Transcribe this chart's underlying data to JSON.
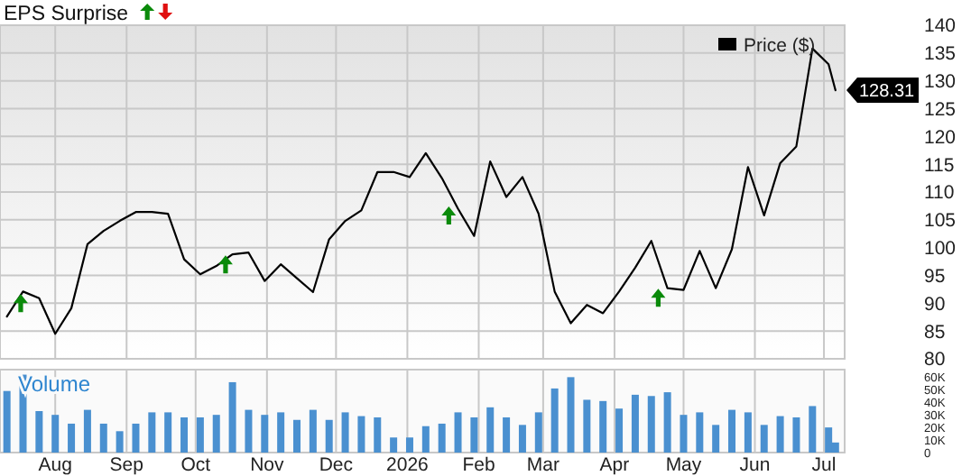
{
  "chart_data": [
    {
      "type": "line",
      "title": "EPS Surprise",
      "x": [
        "2025-07-11",
        "2025-07-18",
        "2025-07-25",
        "2025-08-01",
        "2025-08-08",
        "2025-08-15",
        "2025-08-22",
        "2025-08-29",
        "2025-09-05",
        "2025-09-12",
        "2025-09-19",
        "2025-09-26",
        "2025-10-03",
        "2025-10-10",
        "2025-10-17",
        "2025-10-24",
        "2025-10-31",
        "2025-11-07",
        "2025-11-14",
        "2025-11-21",
        "2025-11-28",
        "2025-12-05",
        "2025-12-12",
        "2025-12-19",
        "2025-12-26",
        "2026-01-02",
        "2026-01-09",
        "2026-01-16",
        "2026-01-23",
        "2026-01-30",
        "2026-02-06",
        "2026-02-13",
        "2026-02-20",
        "2026-02-27",
        "2026-03-06",
        "2026-03-13",
        "2026-03-20",
        "2026-03-27",
        "2026-04-03",
        "2026-04-10",
        "2026-04-17",
        "2026-04-24",
        "2026-05-01",
        "2026-05-08",
        "2026-05-15",
        "2026-05-22",
        "2026-05-29",
        "2026-06-05",
        "2026-06-12",
        "2026-06-19",
        "2026-06-26",
        "2026-07-03",
        "2026-07-06"
      ],
      "series": [
        {
          "name": "Price ($)",
          "color": "#000000",
          "values": [
            87.6,
            92.1,
            90.9,
            84.5,
            89.1,
            100.6,
            103,
            104.8,
            106.4,
            106.4,
            106.1,
            97.9,
            95.2,
            96.7,
            98.8,
            99.1,
            94,
            97,
            94.5,
            92,
            101.5,
            104.8,
            106.7,
            113.6,
            113.6,
            112.7,
            117,
            112.5,
            107,
            102.1,
            115.5,
            109.1,
            112.7,
            106.1,
            92.1,
            86.4,
            89.7,
            88.2,
            92.1,
            96.4,
            101.2,
            92.7,
            92.4,
            99.4,
            92.7,
            99.7,
            114.5,
            105.8,
            115.2,
            118.2,
            135.8,
            133,
            128.31
          ],
          "value_labels": [
            null,
            null,
            null,
            null,
            null,
            null,
            null,
            null,
            null,
            null,
            null,
            null,
            null,
            null,
            null,
            null,
            null,
            null,
            null,
            null,
            null,
            null,
            null,
            null,
            null,
            null,
            null,
            null,
            null,
            null,
            null,
            null,
            null,
            null,
            null,
            null,
            null,
            null,
            null,
            null,
            null,
            null,
            null,
            null,
            null,
            null,
            null,
            null,
            null,
            null,
            null,
            null,
            "128.31"
          ]
        },
        {
          "type": "scatter",
          "color": "#0a8a0a",
          "marker": "triangle",
          "x": [
            "2025-07-17",
            "2025-10-14",
            "2026-01-19",
            "2026-04-20"
          ],
          "values": [
            90,
            97,
            105.8,
            91
          ]
        }
      ],
      "xlim": [
        "2025-07-08",
        "2026-07-10"
      ],
      "xticks": [
        {
          "value": "2025-08-01",
          "label": null
        },
        {
          "value": "2025-09-01",
          "label": null
        },
        {
          "value": "2025-10-01",
          "label": null
        },
        {
          "value": "2025-11-01",
          "label": null
        },
        {
          "value": "2025-12-01",
          "label": null
        },
        {
          "value": "2026-01-01",
          "label": null
        },
        {
          "value": "2026-02-01",
          "label": null
        },
        {
          "value": "2026-03-01",
          "label": null
        },
        {
          "value": "2026-04-01",
          "label": null
        },
        {
          "value": "2026-05-01",
          "label": null
        },
        {
          "value": "2026-06-01",
          "label": null
        },
        {
          "value": "2026-07-01",
          "label": null
        }
      ],
      "ylim": [
        80,
        140
      ],
      "yticks": [
        80,
        85,
        90,
        95,
        100,
        105,
        110,
        115,
        120,
        125,
        130,
        135,
        140
      ],
      "grid": true,
      "legend": "top right",
      "tick_labels": "y"
    },
    {
      "type": "bar",
      "title": "Volume",
      "color": "#4a90d0",
      "x": [
        "2025-07-11",
        "2025-07-18",
        "2025-07-25",
        "2025-08-01",
        "2025-08-08",
        "2025-08-15",
        "2025-08-22",
        "2025-08-29",
        "2025-09-05",
        "2025-09-12",
        "2025-09-19",
        "2025-09-26",
        "2025-10-03",
        "2025-10-10",
        "2025-10-17",
        "2025-10-24",
        "2025-10-31",
        "2025-11-07",
        "2025-11-14",
        "2025-11-21",
        "2025-11-28",
        "2025-12-05",
        "2025-12-12",
        "2025-12-19",
        "2025-12-26",
        "2026-01-02",
        "2026-01-09",
        "2026-01-16",
        "2026-01-23",
        "2026-01-30",
        "2026-02-06",
        "2026-02-13",
        "2026-02-20",
        "2026-02-27",
        "2026-03-06",
        "2026-03-13",
        "2026-03-20",
        "2026-03-27",
        "2026-04-03",
        "2026-04-10",
        "2026-04-17",
        "2026-04-24",
        "2026-05-01",
        "2026-05-08",
        "2026-05-15",
        "2026-05-22",
        "2026-05-29",
        "2026-06-05",
        "2026-06-12",
        "2026-06-19",
        "2026-06-26",
        "2026-07-03",
        "2026-07-06"
      ],
      "values": [
        49,
        62,
        33,
        30,
        23,
        34,
        23,
        17,
        23,
        32,
        32,
        28,
        28,
        30,
        56,
        34,
        30,
        32,
        26,
        34,
        26,
        32,
        29,
        28,
        12,
        12,
        21,
        23,
        32,
        28,
        36,
        28,
        22,
        32,
        51,
        60,
        42,
        41,
        35,
        46,
        45,
        48,
        30,
        32,
        22,
        34,
        32,
        22,
        29,
        28,
        37,
        20,
        8
      ],
      "xlim": [
        "2025-07-08",
        "2026-07-10"
      ],
      "xticks": [
        {
          "value": "2025-08-01",
          "label": "Aug"
        },
        {
          "value": "2025-09-01",
          "label": "Sep"
        },
        {
          "value": "2025-10-01",
          "label": "Oct"
        },
        {
          "value": "2025-11-01",
          "label": "Nov"
        },
        {
          "value": "2025-12-01",
          "label": "Dec"
        },
        {
          "value": "2026-01-01",
          "label": "2026"
        },
        {
          "value": "2026-02-01",
          "label": "Feb"
        },
        {
          "value": "2026-03-01",
          "label": "Mar"
        },
        {
          "value": "2026-04-01",
          "label": "Apr"
        },
        {
          "value": "2026-05-01",
          "label": "May"
        },
        {
          "value": "2026-06-01",
          "label": "Jun"
        },
        {
          "value": "2026-07-01",
          "label": "Jul"
        }
      ],
      "ylim": [
        0,
        66
      ],
      "yticks": [
        0,
        {
          "value": 10,
          "label": "10K"
        },
        {
          "value": 20,
          "label": "20K"
        },
        {
          "value": 30,
          "label": "30K"
        },
        {
          "value": 40,
          "label": "40K"
        },
        {
          "value": 50,
          "label": "50K"
        },
        {
          "value": 60,
          "label": "60K"
        }
      ],
      "grid": "x"
    }
  ]
}
